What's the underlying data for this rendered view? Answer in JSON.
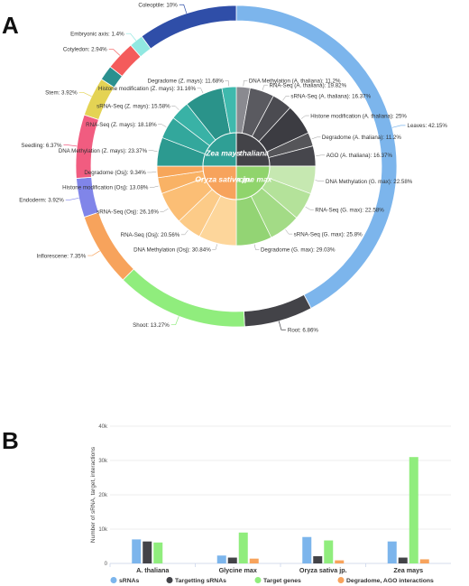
{
  "panel_labels": {
    "a": "A",
    "b": "B"
  },
  "chart_data": [
    {
      "type": "pie",
      "outer_ring": {
        "slices": [
          {
            "label": "Leaves: 42.15%",
            "value": 42.15,
            "color": "#7cb5ec"
          },
          {
            "label": "Root: 6.86%",
            "value": 6.86,
            "color": "#434348"
          },
          {
            "label": "Shoot: 13.27%",
            "value": 13.27,
            "color": "#90ed7d"
          },
          {
            "label": "Inflorescene: 7.35%",
            "value": 7.35,
            "color": "#f7a35c"
          },
          {
            "label": "Endoderm: 3.92%",
            "value": 3.92,
            "color": "#8085e9"
          },
          {
            "label": "Seedling: 6.37%",
            "value": 6.37,
            "color": "#f15c80"
          },
          {
            "label": "Stem: 3.92%",
            "value": 3.92,
            "color": "#e4d354"
          },
          {
            "label": "",
            "value": 1.5,
            "color": "#2b908f"
          },
          {
            "label": "Cotyledon: 2.94%",
            "value": 2.94,
            "color": "#f45b5b"
          },
          {
            "label": "Embryonic axis: 1.4%",
            "value": 1.4,
            "color": "#91e8e1"
          },
          {
            "label": "Coleoptile: 10%",
            "value": 10.0,
            "color": "#2f4ea8"
          }
        ]
      },
      "inner_pie": {
        "groups": [
          {
            "name": "A. thaliana",
            "color": "#434348",
            "slices": [
              {
                "label": "DNA Methylation (A. thaliana): 11.2%",
                "value": 11.2,
                "color": "#8a8a90"
              },
              {
                "label": "RNA-Seq (A. thaliana): 19.82%",
                "value": 19.82,
                "color": "#5a5a60"
              },
              {
                "label": "sRNA-Seq (A. thaliana): 16.37%",
                "value": 16.37,
                "color": "#4b4b51"
              },
              {
                "label": "Histone modification (A. thaliana): 25%",
                "value": 25,
                "color": "#3c3c42"
              },
              {
                "label": "Degradome (A. thaliana): 11.2%",
                "value": 11.2,
                "color": "#555559"
              },
              {
                "label": "AGO (A. thaliana): 16.37%",
                "value": 16.37,
                "color": "#46464c"
              }
            ]
          },
          {
            "name": "Glycine max",
            "color": "#90d46c",
            "slices": [
              {
                "label": "DNA Methylation (G. max): 22.58%",
                "value": 22.58,
                "color": "#c6e8b1"
              },
              {
                "label": "RNA-Seq (G. max): 22.58%",
                "value": 22.58,
                "color": "#b4e29a"
              },
              {
                "label": "sRNA-Seq (G. max): 25.8%",
                "value": 25.8,
                "color": "#a3db86"
              },
              {
                "label": "Degradome (G. max): 29.03%",
                "value": 29.03,
                "color": "#93d474"
              }
            ]
          },
          {
            "name": "Oryza sativa jp.",
            "color": "#f7a35c",
            "slices": [
              {
                "label": "DNA Methylation (Osj): 30.84%",
                "value": 30.84,
                "color": "#fdd69b"
              },
              {
                "label": "RNA-Seq (Osj): 20.56%",
                "value": 20.56,
                "color": "#fccb88"
              },
              {
                "label": "sRNA-Seq (Osj): 26.16%",
                "value": 26.16,
                "color": "#fbbe75"
              },
              {
                "label": "Histone modification (Osj): 13.08%",
                "value": 13.08,
                "color": "#f9b265"
              },
              {
                "label": "Degradome (Osj): 9.34%",
                "value": 9.34,
                "color": "#f7a65a"
              }
            ]
          },
          {
            "name": "Zea mays",
            "color": "#2f9f95",
            "slices": [
              {
                "label": "DNA Methylation (Z. mays): 23.37%",
                "value": 23.37,
                "color": "#2c9a90"
              },
              {
                "label": "RNA-Seq (Z. mays): 18.18%",
                "value": 18.18,
                "color": "#33a79c"
              },
              {
                "label": "sRNA-Seq (Z. mays): 15.58%",
                "value": 15.58,
                "color": "#39b2a6"
              },
              {
                "label": "Histone modification (Z. mays): 31.16%",
                "value": 31.16,
                "color": "#2a938a"
              },
              {
                "label": "Degradome (Z. mays): 11.68%",
                "value": 11.68,
                "color": "#3fb9ad"
              }
            ]
          }
        ]
      }
    },
    {
      "type": "bar",
      "categories": [
        "A. thaliana",
        "Glycine max",
        "Oryza sativa jp.",
        "Zea mays"
      ],
      "ylabel": "Number of sRNA, target, interactions",
      "ylim": [
        0,
        40000
      ],
      "yticks": [
        "0",
        "10k",
        "20k",
        "30k",
        "40k"
      ],
      "ytick_values": [
        0,
        10000,
        20000,
        30000,
        40000
      ],
      "grid": true,
      "legend_position": "bottom",
      "series": [
        {
          "name": "sRNAs",
          "color": "#7cb5ec",
          "values": [
            7000,
            2300,
            7700,
            6400
          ]
        },
        {
          "name": "Targetting sRNAs",
          "color": "#434348",
          "values": [
            6400,
            1700,
            2100,
            1700
          ]
        },
        {
          "name": "Target genes",
          "color": "#90ed7d",
          "values": [
            6100,
            9000,
            6700,
            31000
          ]
        },
        {
          "name": "Degradome, AGO interactions",
          "color": "#f7a35c",
          "values": [
            0,
            1400,
            900,
            1200
          ]
        }
      ]
    }
  ]
}
